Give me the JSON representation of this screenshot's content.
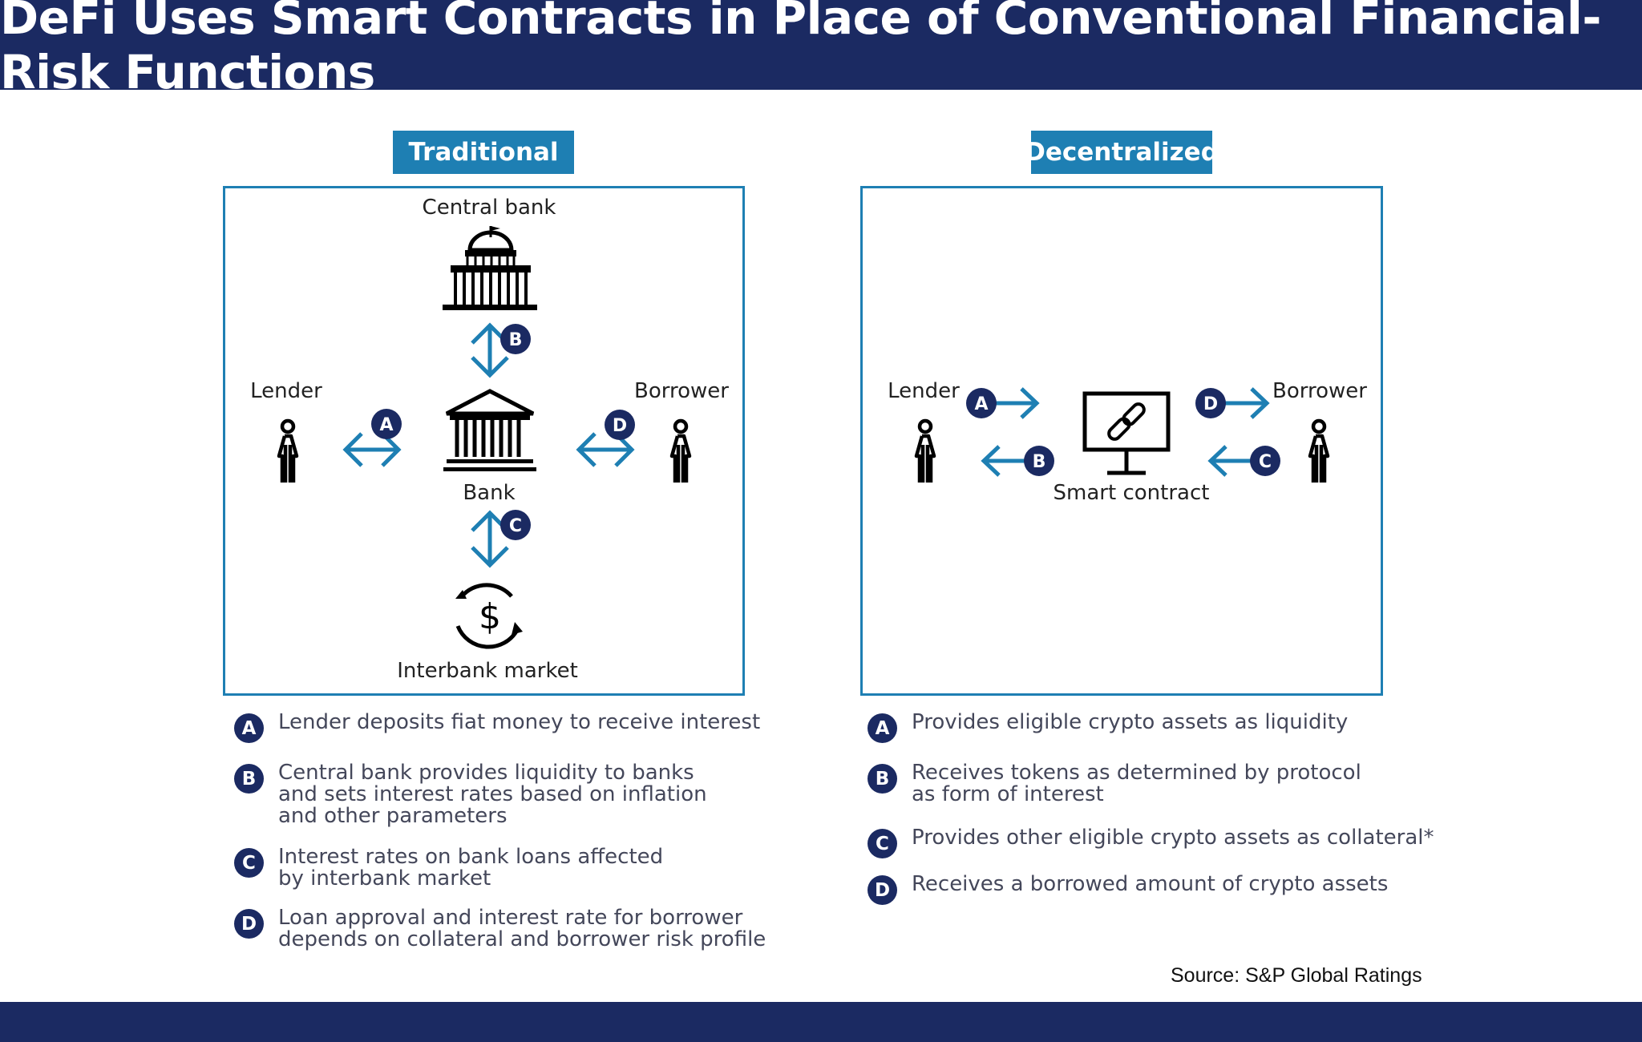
{
  "title": "DeFi Uses Smart Contracts in Place of Conventional Financial-Risk Functions",
  "colors": {
    "navy": "#1b2a62",
    "accent_blue": "#1e7fb3",
    "icon_black": "#000000",
    "text_gray": "#44475a"
  },
  "traditional": {
    "tag": "Traditional",
    "labels": {
      "central_bank": "Central bank",
      "lender": "Lender",
      "borrower": "Borrower",
      "bank": "Bank",
      "interbank_market": "Interbank market"
    },
    "icons": [
      "capitol-building-icon",
      "bank-building-icon",
      "person-icon",
      "dollar-cycle-icon"
    ],
    "badges": {
      "a": "A",
      "b": "B",
      "c": "C",
      "d": "D"
    },
    "legend": [
      {
        "badge": "A",
        "text": "Lender deposits fiat money to receive interest"
      },
      {
        "badge": "B",
        "text": "Central bank provides liquidity to banks\nand sets interest rates based on inflation\nand other parameters"
      },
      {
        "badge": "C",
        "text": "Interest rates on bank loans affected\nby interbank market"
      },
      {
        "badge": "D",
        "text": "Loan approval and interest rate for borrower\ndepends on collateral and borrower risk profile"
      }
    ]
  },
  "decentralized": {
    "tag": "Decentralized",
    "labels": {
      "lender": "Lender",
      "borrower": "Borrower",
      "smart_contract": "Smart contract"
    },
    "icons": [
      "monitor-chain-link-icon",
      "person-icon"
    ],
    "badges": {
      "a": "A",
      "b": "B",
      "c": "C",
      "d": "D"
    },
    "legend": [
      {
        "badge": "A",
        "text": "Provides eligible crypto assets as liquidity"
      },
      {
        "badge": "B",
        "text": "Receives tokens as determined by protocol\nas form of interest"
      },
      {
        "badge": "C",
        "text": "Provides other eligible crypto assets as collateral*"
      },
      {
        "badge": "D",
        "text": "Receives a borrowed amount of crypto assets"
      }
    ]
  },
  "source": "Source: S&P Global Ratings"
}
